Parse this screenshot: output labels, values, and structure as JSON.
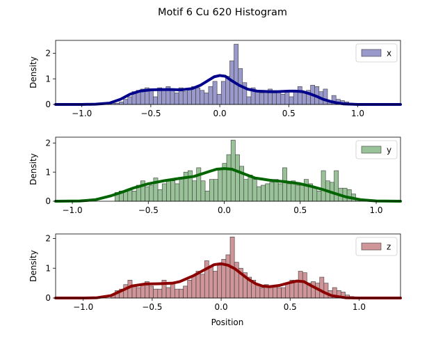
{
  "figure": {
    "title": "Motif 6 Cu 620 Histogram",
    "xlabel": "Position"
  },
  "chart_data": [
    {
      "type": "histogram",
      "series_name": "x",
      "ylabel": "Density",
      "xlim": [
        -1.19,
        1.31
      ],
      "ylim": [
        0,
        2.5
      ],
      "xticks": [
        -1.0,
        -0.5,
        0.0,
        0.5,
        1.0
      ],
      "xtick_labels": [
        "−1.0",
        "−0.5",
        "0.0",
        "0.5",
        "1.0"
      ],
      "yticks": [
        0,
        1,
        2
      ],
      "ytick_labels": [
        "0",
        "1",
        "2"
      ],
      "legend": "upper right",
      "bar_color": "#9999cc",
      "line_color": "#00008b",
      "bin_start": -0.79,
      "bin_width": 0.0308,
      "counts": [
        0.05,
        0.05,
        0.1,
        0.2,
        0.3,
        0.5,
        0.55,
        0.6,
        0.65,
        0.6,
        0.3,
        0.65,
        0.55,
        0.7,
        0.6,
        0.45,
        0.65,
        0.5,
        0.6,
        0.7,
        0.65,
        0.55,
        0.45,
        0.7,
        0.9,
        0.4,
        0.9,
        1.1,
        1.7,
        2.35,
        1.4,
        0.85,
        0.3,
        0.65,
        0.5,
        0.45,
        0.55,
        0.6,
        0.45,
        0.5,
        0.4,
        0.55,
        0.3,
        0.5,
        0.7,
        0.45,
        0.55,
        0.75,
        0.7,
        0.5,
        0.6,
        0.15,
        0.35,
        0.2,
        0.15,
        0.1,
        0.05
      ],
      "kde": {
        "x": [
          -1.19,
          -1.0,
          -0.9,
          -0.8,
          -0.72,
          -0.65,
          -0.58,
          -0.5,
          -0.42,
          -0.35,
          -0.28,
          -0.2,
          -0.14,
          -0.08,
          -0.04,
          0.0,
          0.04,
          0.08,
          0.14,
          0.2,
          0.27,
          0.35,
          0.42,
          0.5,
          0.55,
          0.6,
          0.65,
          0.7,
          0.75,
          0.8,
          0.85,
          0.9,
          1.0,
          1.1,
          1.31
        ],
        "y": [
          0.0,
          0.0,
          0.01,
          0.05,
          0.2,
          0.4,
          0.52,
          0.57,
          0.58,
          0.58,
          0.57,
          0.62,
          0.75,
          0.95,
          1.08,
          1.13,
          1.1,
          0.95,
          0.75,
          0.6,
          0.52,
          0.5,
          0.5,
          0.52,
          0.52,
          0.5,
          0.42,
          0.32,
          0.2,
          0.12,
          0.06,
          0.02,
          0.0,
          0.0,
          0.0
        ]
      }
    },
    {
      "type": "histogram",
      "series_name": "y",
      "ylabel": "Density",
      "xlim": [
        -1.11,
        1.16
      ],
      "ylim": [
        0,
        2.2
      ],
      "xticks": [
        -1.0,
        -0.5,
        0.0,
        0.5,
        1.0
      ],
      "xtick_labels": [
        "−1.0",
        "−0.5",
        "0.0",
        "0.5",
        "1.0"
      ],
      "yticks": [
        0,
        1,
        2
      ],
      "ytick_labels": [
        "0",
        "1",
        "2"
      ],
      "legend": "upper right",
      "bar_color": "#99c299",
      "line_color": "#006400",
      "bin_start": -0.72,
      "bin_width": 0.0283,
      "counts": [
        0.3,
        0.35,
        0.35,
        0.4,
        0.35,
        0.55,
        0.7,
        0.5,
        0.55,
        0.8,
        0.4,
        0.6,
        0.7,
        0.7,
        0.6,
        0.8,
        1.0,
        1.05,
        0.7,
        1.15,
        0.7,
        0.35,
        0.75,
        0.75,
        1.1,
        1.3,
        1.6,
        2.1,
        1.6,
        1.2,
        0.75,
        0.9,
        0.75,
        0.5,
        0.55,
        0.6,
        0.65,
        0.75,
        0.6,
        1.15,
        0.6,
        0.7,
        0.55,
        0.55,
        0.75,
        0.6,
        0.45,
        0.35,
        1.05,
        0.7,
        0.65,
        1.05,
        0.45,
        0.45,
        0.4,
        0.25,
        0.1
      ],
      "kde": {
        "x": [
          -1.11,
          -0.95,
          -0.85,
          -0.75,
          -0.68,
          -0.6,
          -0.5,
          -0.4,
          -0.3,
          -0.2,
          -0.1,
          -0.05,
          0.0,
          0.05,
          0.1,
          0.2,
          0.3,
          0.4,
          0.5,
          0.58,
          0.65,
          0.72,
          0.8,
          0.9,
          1.0,
          1.16
        ],
        "y": [
          0.0,
          0.01,
          0.05,
          0.18,
          0.3,
          0.45,
          0.6,
          0.7,
          0.78,
          0.85,
          1.02,
          1.1,
          1.12,
          1.1,
          1.0,
          0.8,
          0.72,
          0.67,
          0.6,
          0.5,
          0.4,
          0.28,
          0.15,
          0.05,
          0.01,
          0.0
        ]
      }
    },
    {
      "type": "histogram",
      "series_name": "z",
      "ylabel": "Density",
      "xlim": [
        -1.2,
        1.3
      ],
      "ylim": [
        0,
        2.15
      ],
      "xticks": [
        -1.0,
        -0.5,
        0.0,
        0.5,
        1.0
      ],
      "xtick_labels": [
        "−1.0",
        "−0.5",
        "0.0",
        "0.5",
        "1.0"
      ],
      "yticks": [
        0,
        1,
        2
      ],
      "ytick_labels": [
        "0",
        "1",
        "2"
      ],
      "legend": "upper right",
      "bar_color": "#d09598",
      "line_color": "#8b0000",
      "bin_start": -0.8,
      "bin_width": 0.0309,
      "counts": [
        0.1,
        0.25,
        0.3,
        0.45,
        0.6,
        0.4,
        0.35,
        0.45,
        0.55,
        0.4,
        0.3,
        0.3,
        0.6,
        0.35,
        0.5,
        0.3,
        0.3,
        0.4,
        0.6,
        0.75,
        0.9,
        0.8,
        1.25,
        1.05,
        0.9,
        1.1,
        1.3,
        1.45,
        2.05,
        1.2,
        1.0,
        0.85,
        0.7,
        0.6,
        0.45,
        0.35,
        0.45,
        0.4,
        0.4,
        0.35,
        0.35,
        0.5,
        0.6,
        0.55,
        0.9,
        0.85,
        0.5,
        0.55,
        0.5,
        0.7,
        0.5,
        0.25,
        0.35,
        0.25,
        0.2,
        0.1,
        0.05
      ],
      "kde": {
        "x": [
          -1.2,
          -1.0,
          -0.9,
          -0.8,
          -0.72,
          -0.65,
          -0.55,
          -0.45,
          -0.35,
          -0.3,
          -0.2,
          -0.1,
          -0.05,
          0.0,
          0.05,
          0.1,
          0.2,
          0.25,
          0.3,
          0.35,
          0.42,
          0.5,
          0.55,
          0.6,
          0.65,
          0.7,
          0.75,
          0.8,
          0.9,
          1.0,
          1.3
        ],
        "y": [
          0.0,
          0.0,
          0.01,
          0.08,
          0.25,
          0.4,
          0.47,
          0.48,
          0.5,
          0.55,
          0.75,
          1.0,
          1.12,
          1.15,
          1.1,
          0.98,
          0.62,
          0.48,
          0.4,
          0.38,
          0.42,
          0.52,
          0.57,
          0.55,
          0.42,
          0.3,
          0.18,
          0.08,
          0.01,
          0.0,
          0.0
        ]
      }
    }
  ]
}
